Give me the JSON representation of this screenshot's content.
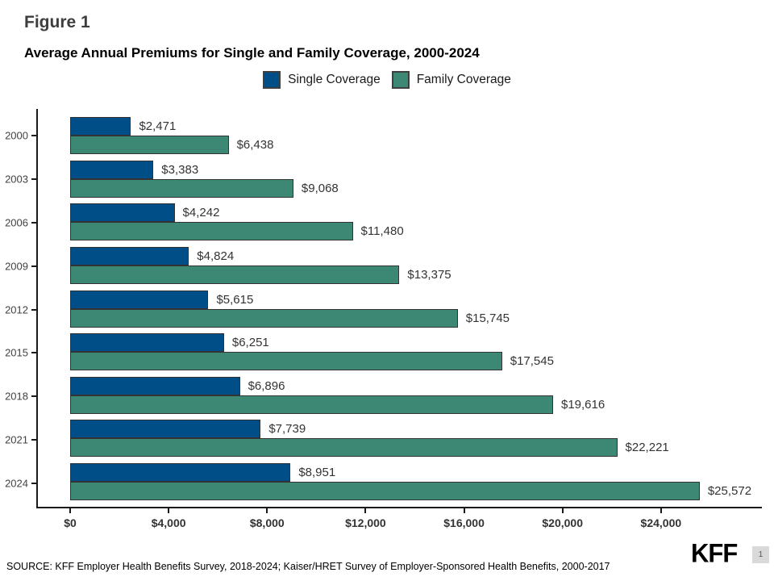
{
  "figure_label": "Figure 1",
  "title": "Average Annual Premiums for Single and Family Coverage, 2000-2024",
  "legend": {
    "items": [
      {
        "label": "Single Coverage",
        "color": "#004e87"
      },
      {
        "label": "Family Coverage",
        "color": "#3d8775"
      }
    ]
  },
  "chart_data": {
    "type": "bar",
    "orientation": "horizontal",
    "title": "Average Annual Premiums for Single and Family Coverage, 2000-2024",
    "categories": [
      "2000",
      "2003",
      "2006",
      "2009",
      "2012",
      "2015",
      "2018",
      "2021",
      "2024"
    ],
    "series": [
      {
        "name": "Single Coverage",
        "color": "#004e87",
        "values": [
          2471,
          3383,
          4242,
          4824,
          5615,
          6251,
          6896,
          7739,
          8951
        ],
        "labels": [
          "$2,471",
          "$3,383",
          "$4,242",
          "$4,824",
          "$5,615",
          "$6,251",
          "$6,896",
          "$7,739",
          "$8,951"
        ]
      },
      {
        "name": "Family Coverage",
        "color": "#3d8775",
        "values": [
          6438,
          9068,
          11480,
          13375,
          15745,
          17545,
          19616,
          22221,
          25572
        ],
        "labels": [
          "$6,438",
          "$9,068",
          "$11,480",
          "$13,375",
          "$15,745",
          "$17,545",
          "$19,616",
          "$22,221",
          "$25,572"
        ]
      }
    ],
    "x_ticks": [
      {
        "value": 0,
        "label": "$0"
      },
      {
        "value": 4000,
        "label": "$4,000"
      },
      {
        "value": 8000,
        "label": "$8,000"
      },
      {
        "value": 12000,
        "label": "$12,000"
      },
      {
        "value": 16000,
        "label": "$16,000"
      },
      {
        "value": 20000,
        "label": "$20,000"
      },
      {
        "value": 24000,
        "label": "$24,000"
      }
    ],
    "xlim": [
      0,
      28000
    ],
    "grid": false,
    "legend_position": "top",
    "bar_border_color": "#333333",
    "data_labels_shown": true
  },
  "footer": {
    "source": "SOURCE: KFF Employer Health Benefits Survey, 2018-2024; Kaiser/HRET Survey of Employer-Sponsored Health Benefits, 2000-2017"
  },
  "branding": {
    "logo_text": "KFF",
    "page_number": "1"
  }
}
